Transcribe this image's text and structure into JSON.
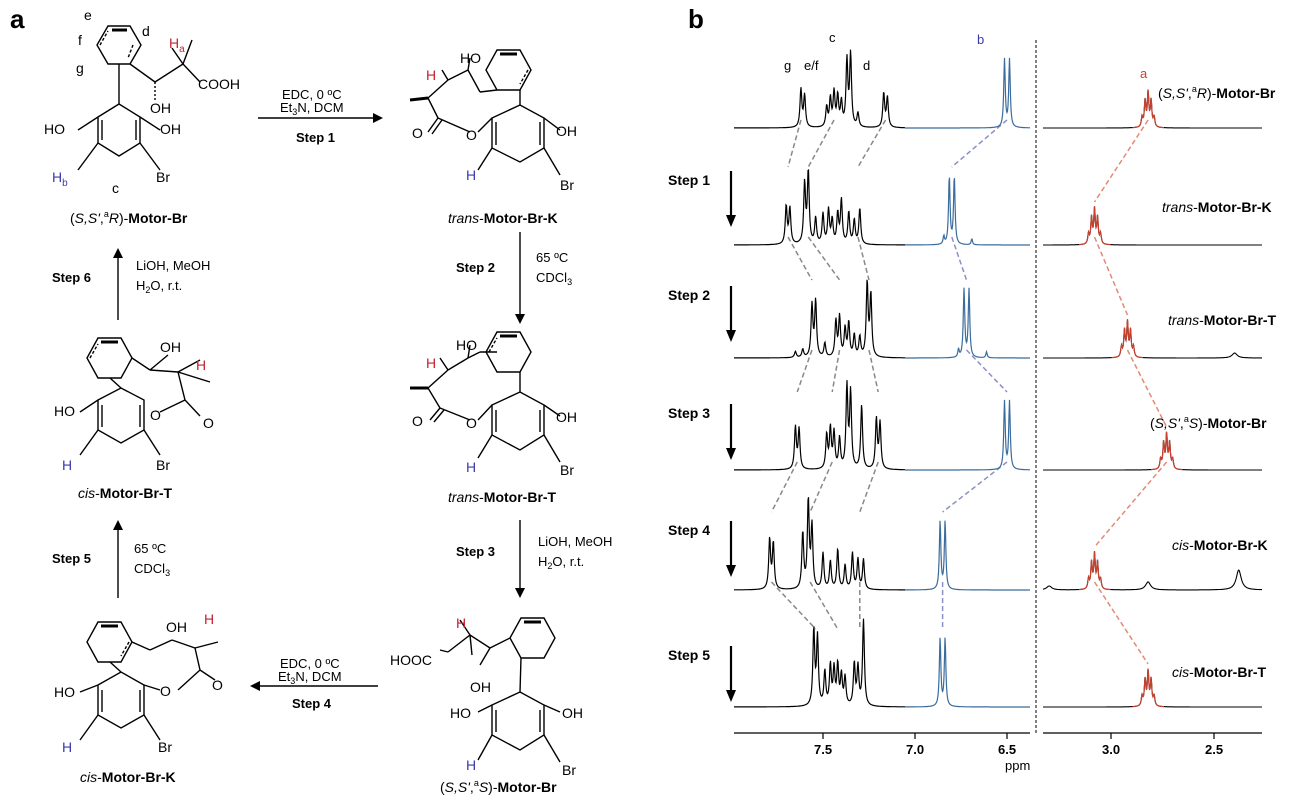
{
  "panels": {
    "a": "a",
    "b": "b"
  },
  "compounds": {
    "c1": {
      "pre": "(",
      "it": "S,S'",
      "sup": "a",
      "it2": "R",
      "post": ")-",
      "bold": "Motor-Br"
    },
    "c2": {
      "it": "trans",
      "post": "-",
      "bold": "Motor-Br-K"
    },
    "c3": {
      "it": "trans",
      "post": "-",
      "bold": "Motor-Br-T"
    },
    "c4": {
      "pre": "(",
      "it": "S,S'",
      "sup": "a",
      "it2": "S",
      "post": ")-",
      "bold": "Motor-Br"
    },
    "c5": {
      "it": "cis",
      "post": "-",
      "bold": "Motor-Br-K"
    },
    "c6": {
      "it": "cis",
      "post": "-",
      "bold": "Motor-Br-T"
    }
  },
  "steps": {
    "s1": {
      "label": "Step 1",
      "l1": "EDC, 0 ºC",
      "l2a": "Et",
      "l2sub": "3",
      "l2b": "N, DCM"
    },
    "s2": {
      "label": "Step 2",
      "l1": "65 ºC",
      "l2a": "CDCl",
      "l2sub": "3"
    },
    "s3": {
      "label": "Step 3",
      "l1": "LiOH, MeOH",
      "l2a": "H",
      "l2sub": "2",
      "l2b": "O, r.t."
    },
    "s4": {
      "label": "Step 4",
      "l1": "EDC, 0 ºC",
      "l2a": "Et",
      "l2sub": "3",
      "l2b": "N, DCM"
    },
    "s5": {
      "label": "Step 5",
      "l1": "65 ºC",
      "l2a": "CDCl",
      "l2sub": "3"
    },
    "s6": {
      "label": "Step 6",
      "l1": "LiOH, MeOH",
      "l2a": "H",
      "l2sub": "2",
      "l2b": "O, r.t."
    }
  },
  "atoms": {
    "HO": "HO",
    "OH": "OH",
    "Br": "Br",
    "O": "O",
    "H": "H",
    "Ha": "H",
    "a_sub": "a",
    "Hb": "H",
    "b_sub": "b",
    "COOH": "COOH",
    "HOOC": "HOOC",
    "e": "e",
    "d": "d",
    "f": "f",
    "g": "g",
    "c": "c"
  },
  "nmr": {
    "axis_label": "ppm",
    "ticks_left": [
      "7.5",
      "7.0",
      "6.5"
    ],
    "ticks_right": [
      "3.0",
      "2.5"
    ],
    "peak_labels": {
      "g": "g",
      "ef": "e/f",
      "c": "c",
      "d": "d",
      "b": "b",
      "a": "a"
    },
    "colors": {
      "aromatic": "#000000",
      "b": "#3a6c9c",
      "a": "#c8402e",
      "guide_b": "#8b8fc9",
      "guide_a": "#e28a74",
      "guide_ar": "#888888"
    },
    "step_labels": [
      "Step 1",
      "Step 2",
      "Step 3",
      "Step 4",
      "Step 5"
    ],
    "spectra": [
      {
        "label": "(S,S',aR)-Motor-Br",
        "b_shift": 6.5,
        "a_shift": 2.82
      },
      {
        "label": "trans-Motor-Br-K",
        "b_shift": 6.8,
        "a_shift": 3.08
      },
      {
        "label": "trans-Motor-Br-T",
        "b_shift": 6.72,
        "a_shift": 2.92
      },
      {
        "label": "(S,S',aS)-Motor-Br",
        "b_shift": 6.5,
        "a_shift": 2.73
      },
      {
        "label": "cis-Motor-Br-K",
        "b_shift": 6.85,
        "a_shift": 3.08
      },
      {
        "label": "cis-Motor-Br-T",
        "b_shift": 6.85,
        "a_shift": 2.82
      }
    ]
  }
}
